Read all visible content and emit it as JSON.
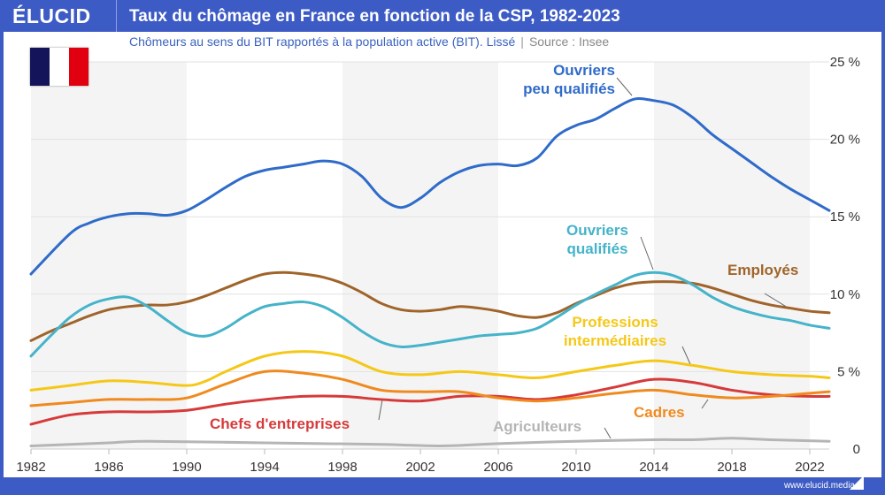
{
  "header": {
    "logo": "ÉLUCID",
    "title": "Taux du chômage en France en fonction de la CSP, 1982-2023"
  },
  "subtitle": {
    "text": "Chômeurs au sens du BIT rapportés à la population active (BIT). Lissé",
    "separator": "|",
    "source": "Source : Insee"
  },
  "flag": {
    "colors": [
      "#14145a",
      "#ffffff",
      "#e1000f"
    ]
  },
  "footer": {
    "url": "www.elucid.media"
  },
  "chart_data": {
    "type": "line",
    "xlim": [
      1982,
      2023
    ],
    "ylim": [
      0,
      25
    ],
    "x_ticks": [
      "1982",
      "1986",
      "1990",
      "1994",
      "1998",
      "2002",
      "2006",
      "2010",
      "2014",
      "2018",
      "2022"
    ],
    "y_ticks": [
      "0",
      "5 %",
      "10 %",
      "15 %",
      "20 %",
      "25 %"
    ],
    "grid": true,
    "series": [
      {
        "name": "Ouvriers peu qualifiés",
        "color": "#2f6bc9",
        "x": [
          1982,
          1984,
          1985,
          1986,
          1987,
          1988,
          1989,
          1990,
          1991,
          1992,
          1993,
          1994,
          1995,
          1996,
          1997,
          1998,
          1999,
          2000,
          2001,
          2002,
          2003,
          2004,
          2005,
          2006,
          2007,
          2008,
          2009,
          2010,
          2011,
          2012,
          2013,
          2014,
          2015,
          2016,
          2017,
          2018,
          2019,
          2020,
          2021,
          2022,
          2023
        ],
        "y": [
          11.3,
          13.9,
          14.6,
          15.0,
          15.2,
          15.2,
          15.1,
          15.4,
          16.1,
          16.9,
          17.6,
          18.0,
          18.2,
          18.4,
          18.6,
          18.4,
          17.6,
          16.2,
          15.6,
          16.2,
          17.2,
          17.9,
          18.3,
          18.4,
          18.3,
          18.8,
          20.2,
          20.9,
          21.3,
          22.0,
          22.6,
          22.5,
          22.2,
          21.4,
          20.3,
          19.4,
          18.5,
          17.6,
          16.8,
          16.1,
          15.4
        ]
      },
      {
        "name": "Ouvriers qualifiés",
        "color": "#45b3c9",
        "x": [
          1982,
          1983,
          1984,
          1985,
          1986,
          1987,
          1988,
          1989,
          1990,
          1991,
          1992,
          1993,
          1994,
          1995,
          1996,
          1997,
          1998,
          1999,
          2000,
          2001,
          2002,
          2003,
          2004,
          2005,
          2006,
          2007,
          2008,
          2009,
          2010,
          2011,
          2012,
          2013,
          2014,
          2015,
          2016,
          2017,
          2018,
          2019,
          2020,
          2021,
          2022,
          2023
        ],
        "y": [
          6.0,
          7.3,
          8.5,
          9.3,
          9.7,
          9.8,
          9.2,
          8.3,
          7.5,
          7.3,
          7.8,
          8.6,
          9.2,
          9.4,
          9.5,
          9.2,
          8.5,
          7.6,
          6.9,
          6.6,
          6.7,
          6.9,
          7.1,
          7.3,
          7.4,
          7.5,
          7.8,
          8.5,
          9.3,
          10.0,
          10.6,
          11.2,
          11.4,
          11.2,
          10.6,
          9.8,
          9.2,
          8.8,
          8.5,
          8.3,
          8.0,
          7.8
        ]
      },
      {
        "name": "Employés",
        "color": "#a0642a",
        "x": [
          1982,
          1983,
          1984,
          1985,
          1986,
          1987,
          1988,
          1989,
          1990,
          1991,
          1992,
          1993,
          1994,
          1995,
          1996,
          1997,
          1998,
          1999,
          2000,
          2001,
          2002,
          2003,
          2004,
          2005,
          2006,
          2007,
          2008,
          2009,
          2010,
          2011,
          2012,
          2013,
          2014,
          2015,
          2016,
          2017,
          2018,
          2019,
          2020,
          2021,
          2022,
          2023
        ],
        "y": [
          7.0,
          7.6,
          8.1,
          8.6,
          9.0,
          9.2,
          9.3,
          9.3,
          9.5,
          9.9,
          10.4,
          10.9,
          11.3,
          11.4,
          11.3,
          11.1,
          10.7,
          10.1,
          9.4,
          9.0,
          8.9,
          9.0,
          9.2,
          9.1,
          8.9,
          8.6,
          8.5,
          8.8,
          9.4,
          9.9,
          10.4,
          10.7,
          10.8,
          10.8,
          10.7,
          10.4,
          10.0,
          9.6,
          9.3,
          9.1,
          8.9,
          8.8
        ]
      },
      {
        "name": "Professions intermédiaires",
        "color": "#f5c818",
        "x": [
          1982,
          1984,
          1986,
          1988,
          1990,
          1991,
          1992,
          1994,
          1996,
          1998,
          2000,
          2002,
          2004,
          2006,
          2008,
          2010,
          2012,
          2014,
          2016,
          2018,
          2020,
          2022,
          2023
        ],
        "y": [
          3.8,
          4.1,
          4.4,
          4.3,
          4.1,
          4.4,
          5.0,
          6.0,
          6.3,
          6.0,
          5.0,
          4.8,
          5.0,
          4.8,
          4.6,
          5.0,
          5.4,
          5.7,
          5.4,
          5.0,
          4.8,
          4.7,
          4.6
        ]
      },
      {
        "name": "Cadres",
        "color": "#f08a1e",
        "x": [
          1982,
          1984,
          1986,
          1988,
          1990,
          1992,
          1994,
          1996,
          1998,
          2000,
          2002,
          2004,
          2006,
          2008,
          2010,
          2012,
          2014,
          2016,
          2018,
          2020,
          2022,
          2023
        ],
        "y": [
          2.8,
          3.0,
          3.2,
          3.2,
          3.3,
          4.2,
          5.0,
          4.9,
          4.5,
          3.8,
          3.7,
          3.7,
          3.3,
          3.1,
          3.3,
          3.6,
          3.8,
          3.5,
          3.3,
          3.4,
          3.6,
          3.7
        ]
      },
      {
        "name": "Chefs d'entreprises",
        "color": "#d63a3a",
        "x": [
          1982,
          1984,
          1986,
          1988,
          1990,
          1992,
          1994,
          1996,
          1998,
          2000,
          2002,
          2004,
          2006,
          2008,
          2010,
          2012,
          2014,
          2016,
          2018,
          2020,
          2022,
          2023
        ],
        "y": [
          1.6,
          2.2,
          2.4,
          2.4,
          2.5,
          2.9,
          3.2,
          3.4,
          3.4,
          3.2,
          3.1,
          3.4,
          3.4,
          3.2,
          3.5,
          4.0,
          4.5,
          4.3,
          3.8,
          3.5,
          3.4,
          3.4
        ]
      },
      {
        "name": "Agriculteurs",
        "color": "#b5b5b5",
        "x": [
          1982,
          1986,
          1988,
          1994,
          2000,
          2003,
          2006,
          2010,
          2014,
          2016,
          2018,
          2020,
          2023
        ],
        "y": [
          0.2,
          0.4,
          0.5,
          0.4,
          0.3,
          0.2,
          0.35,
          0.5,
          0.6,
          0.6,
          0.7,
          0.6,
          0.5
        ]
      }
    ],
    "labels": {
      "peu": [
        "Ouvriers",
        "peu qualifiés"
      ],
      "qual": [
        "Ouvriers",
        "qualifiés"
      ],
      "emp": "Employés",
      "pi": [
        "Professions",
        "intermédiaires"
      ],
      "cadres": "Cadres",
      "chefs": "Chefs d'entreprises",
      "agri": "Agriculteurs"
    }
  }
}
